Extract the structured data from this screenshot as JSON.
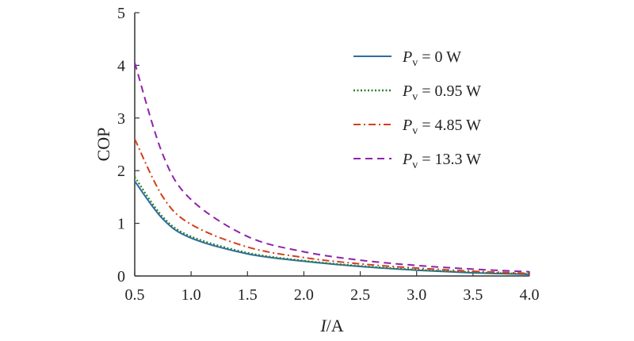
{
  "chart_data": {
    "type": "line",
    "title": "",
    "xlabel": "I/A",
    "xlabel_var": "I",
    "xlabel_unit": "/A",
    "ylabel": "COP",
    "xlim": [
      0.5,
      4.0
    ],
    "ylim": [
      0,
      5
    ],
    "xticks": [
      "0.5",
      "1.0",
      "1.5",
      "2.0",
      "2.5",
      "3.0",
      "3.5",
      "4.0"
    ],
    "yticks": [
      "0",
      "1",
      "2",
      "3",
      "4",
      "5"
    ],
    "grid": false,
    "legend_position": "top-right",
    "x": [
      0.5,
      0.75,
      1.0,
      1.5,
      2.0,
      2.5,
      3.0,
      3.5,
      4.0
    ],
    "series": [
      {
        "name": "P_v = 0 W",
        "legend_symbol": "P",
        "legend_sub": "v",
        "legend_value": " = 0 W",
        "color": "#2e6da4",
        "style": "solid",
        "values": [
          1.8,
          1.08,
          0.72,
          0.42,
          0.28,
          0.18,
          0.11,
          0.06,
          0.03
        ]
      },
      {
        "name": "P_v = 0.95 W",
        "legend_symbol": "P",
        "legend_sub": "v",
        "legend_value": " = 0.95 W",
        "color": "#2e7d32",
        "style": "dotted",
        "values": [
          1.88,
          1.12,
          0.75,
          0.44,
          0.29,
          0.19,
          0.12,
          0.07,
          0.04
        ]
      },
      {
        "name": "P_v = 4.85 W",
        "legend_symbol": "P",
        "legend_sub": "v",
        "legend_value": " = 4.85 W",
        "color": "#d2401c",
        "style": "dashdot",
        "values": [
          2.6,
          1.5,
          0.98,
          0.55,
          0.35,
          0.23,
          0.15,
          0.09,
          0.05
        ]
      },
      {
        "name": "P_v = 13.3 W",
        "legend_symbol": "P",
        "legend_sub": "v",
        "legend_value": " = 13.3 W",
        "color": "#8e24aa",
        "style": "dashed",
        "values": [
          4.05,
          2.3,
          1.45,
          0.75,
          0.46,
          0.3,
          0.2,
          0.13,
          0.08
        ]
      }
    ]
  }
}
